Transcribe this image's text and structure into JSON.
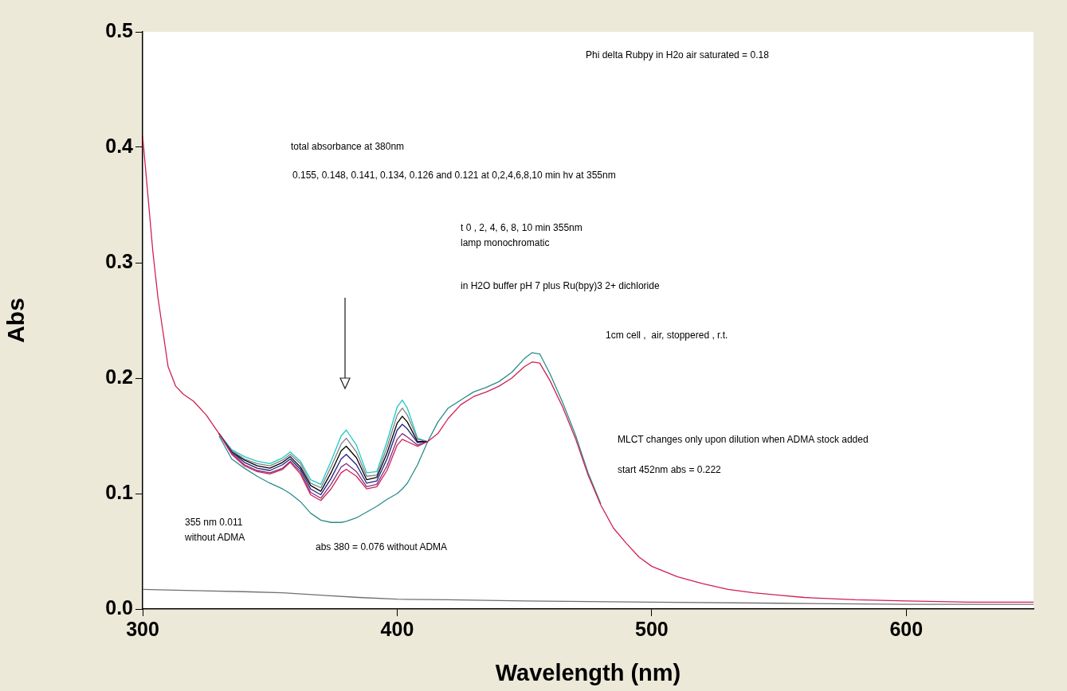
{
  "chart_data": {
    "type": "line",
    "xlabel": "Wavelength (nm)",
    "ylabel": "Abs",
    "marker": "none",
    "line_style": "solid",
    "xlim": [
      300,
      650
    ],
    "ylim": [
      0,
      0.5
    ],
    "xticks": [
      300,
      400,
      500,
      600
    ],
    "yticks": [
      {
        "value": 0,
        "label": "0.0"
      },
      0.1,
      0.2,
      0.3,
      0.4,
      0.5
    ],
    "annotations": [
      "Phi delta Rubpy in H2o air saturated = 0.18",
      "total absorbance at 380nm",
      "0.155, 0.148, 0.141, 0.134, 0.126 and 0.121 at 0,2,4,6,8,10 min hv at 355nm",
      "t 0 , 2, 4, 6, 8, 10 min 355nm",
      "lamp monochromatic",
      "in H2O buffer pH 7 plus Ru(bpy)3 2+ dichloride",
      "1cm cell ,  air, stoppered , r.t.",
      "MLCT changes only upon dilution when ADMA stock added",
      "start 452nm abs = 0.222",
      "355 nm 0.011",
      "without ADMA",
      "abs 380 = 0.076 without ADMA"
    ],
    "x": [
      300,
      302,
      304,
      306,
      308,
      310,
      313,
      316,
      320,
      325,
      330,
      335,
      340,
      345,
      350,
      355,
      358,
      362,
      366,
      370,
      374,
      378,
      380,
      384,
      388,
      392,
      396,
      400,
      402,
      404,
      408,
      412,
      416,
      420,
      425,
      430,
      435,
      440,
      445,
      450,
      453,
      456,
      460,
      465,
      470,
      475,
      480,
      485,
      490,
      495,
      500,
      510,
      520,
      530,
      540,
      550,
      560,
      580,
      600,
      625,
      650
    ],
    "series": [
      {
        "color": "#2a8c8c",
        "values": [
          null,
          null,
          null,
          null,
          null,
          null,
          null,
          null,
          null,
          null,
          0.15,
          0.13,
          0.122,
          0.115,
          0.109,
          0.104,
          0.1,
          0.093,
          0.083,
          0.077,
          0.075,
          0.075,
          0.076,
          0.079,
          0.084,
          0.089,
          0.095,
          0.1,
          0.104,
          0.109,
          0.125,
          0.145,
          0.162,
          0.174,
          0.181,
          0.188,
          0.192,
          0.197,
          0.205,
          0.217,
          0.222,
          0.221,
          0.204,
          0.179,
          0.151,
          0.118,
          0.091,
          null,
          null,
          null,
          null,
          null,
          null,
          null,
          null,
          null,
          null,
          null,
          null,
          null,
          null
        ]
      },
      {
        "color": "#1fc8c8",
        "values": [
          null,
          null,
          null,
          null,
          null,
          null,
          null,
          null,
          null,
          null,
          0.152,
          0.138,
          0.132,
          0.128,
          0.126,
          0.131,
          0.136,
          0.128,
          0.112,
          0.108,
          0.128,
          0.15,
          0.155,
          0.142,
          0.118,
          0.119,
          0.145,
          0.175,
          0.181,
          0.174,
          0.148,
          0.145,
          null,
          null,
          null,
          null,
          null,
          null,
          null,
          null,
          null,
          null,
          null,
          null,
          null,
          null,
          null,
          null,
          null,
          null,
          null,
          null,
          null,
          null,
          null,
          null,
          null,
          null,
          null,
          null,
          null
        ]
      },
      {
        "color": "#808080",
        "values": [
          null,
          null,
          null,
          null,
          null,
          null,
          null,
          null,
          null,
          null,
          0.152,
          0.137,
          0.13,
          0.126,
          0.124,
          0.129,
          0.134,
          0.126,
          0.109,
          0.105,
          0.123,
          0.143,
          0.148,
          0.136,
          0.115,
          0.116,
          0.14,
          0.168,
          0.174,
          0.168,
          0.147,
          0.145,
          null,
          null,
          null,
          null,
          null,
          null,
          null,
          null,
          null,
          null,
          null,
          null,
          null,
          null,
          null,
          null,
          null,
          null,
          null,
          null,
          null,
          null,
          null,
          null,
          null,
          null,
          null,
          null,
          null
        ]
      },
      {
        "color": "#000000",
        "values": [
          null,
          null,
          null,
          null,
          null,
          null,
          null,
          null,
          null,
          null,
          0.152,
          0.136,
          0.129,
          0.124,
          0.122,
          0.127,
          0.132,
          0.123,
          0.107,
          0.102,
          0.118,
          0.137,
          0.141,
          0.131,
          0.112,
          0.114,
          0.135,
          0.161,
          0.167,
          0.162,
          0.145,
          0.145,
          null,
          null,
          null,
          null,
          null,
          null,
          null,
          null,
          null,
          null,
          null,
          null,
          null,
          null,
          null,
          null,
          null,
          null,
          null,
          null,
          null,
          null,
          null,
          null,
          null,
          null,
          null,
          null,
          null
        ]
      },
      {
        "color": "#202080",
        "values": [
          null,
          null,
          null,
          null,
          null,
          null,
          null,
          null,
          null,
          null,
          0.152,
          0.136,
          0.127,
          0.122,
          0.12,
          0.125,
          0.13,
          0.121,
          0.104,
          0.099,
          0.113,
          0.13,
          0.134,
          0.125,
          0.109,
          0.111,
          0.13,
          0.155,
          0.16,
          0.156,
          0.144,
          0.145,
          null,
          null,
          null,
          null,
          null,
          null,
          null,
          null,
          null,
          null,
          null,
          null,
          null,
          null,
          null,
          null,
          null,
          null,
          null,
          null,
          null,
          null,
          null,
          null,
          null,
          null,
          null,
          null,
          null
        ]
      },
      {
        "color": "#803080",
        "values": [
          null,
          null,
          null,
          null,
          null,
          null,
          null,
          null,
          null,
          null,
          0.152,
          0.135,
          0.125,
          0.12,
          0.118,
          0.122,
          0.128,
          0.119,
          0.101,
          0.096,
          0.108,
          0.123,
          0.126,
          0.119,
          0.106,
          0.108,
          0.124,
          0.147,
          0.152,
          0.149,
          0.142,
          0.145,
          null,
          null,
          null,
          null,
          null,
          null,
          null,
          null,
          null,
          null,
          null,
          null,
          null,
          null,
          null,
          null,
          null,
          null,
          null,
          null,
          null,
          null,
          null,
          null,
          null,
          null,
          null,
          null,
          null
        ]
      },
      {
        "color": "#d02050",
        "values": [
          0.41,
          0.36,
          0.31,
          0.27,
          0.24,
          0.21,
          0.193,
          0.186,
          0.18,
          0.168,
          0.152,
          0.134,
          0.124,
          0.119,
          0.117,
          0.121,
          0.127,
          0.117,
          0.099,
          0.094,
          0.104,
          0.118,
          0.121,
          0.115,
          0.104,
          0.106,
          0.12,
          0.142,
          0.147,
          0.145,
          0.141,
          0.145,
          0.152,
          0.165,
          0.177,
          0.184,
          0.188,
          0.193,
          0.2,
          0.21,
          0.214,
          0.213,
          0.198,
          0.175,
          0.148,
          0.116,
          0.09,
          0.07,
          0.057,
          0.045,
          0.037,
          0.028,
          0.022,
          0.017,
          0.014,
          0.012,
          0.01,
          0.008,
          0.007,
          0.006,
          0.006
        ]
      },
      {
        "color": "#707070",
        "x": [
          300,
          320,
          340,
          355,
          370,
          385,
          400,
          420,
          450,
          500,
          550,
          600,
          650
        ],
        "values": [
          0.017,
          0.016,
          0.015,
          0.014,
          0.012,
          0.01,
          0.0085,
          0.008,
          0.007,
          0.006,
          0.005,
          0.004,
          0.004
        ]
      }
    ]
  }
}
